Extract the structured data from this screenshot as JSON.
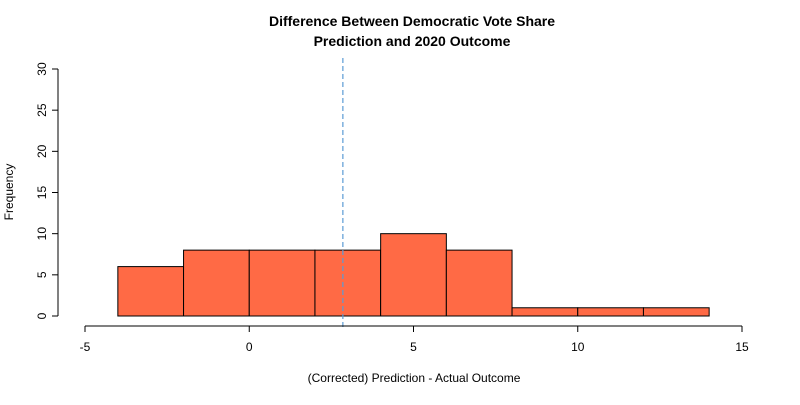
{
  "chart_data": {
    "type": "bar",
    "title_lines": [
      "Difference Between Democratic Vote Share",
      "Prediction and 2020 Outcome"
    ],
    "xlabel": "(Corrected) Prediction - Actual Outcome",
    "ylabel": "Frequency",
    "xlim": [
      -5,
      15
    ],
    "ylim": [
      0,
      30
    ],
    "x_ticks": [
      -5,
      0,
      5,
      10,
      15
    ],
    "y_ticks": [
      0,
      5,
      10,
      15,
      20,
      25,
      30
    ],
    "bins": [
      {
        "x0": -4,
        "x1": -2,
        "count": 6
      },
      {
        "x0": -2,
        "x1": 0,
        "count": 8
      },
      {
        "x0": 0,
        "x1": 2,
        "count": 8
      },
      {
        "x0": 2,
        "x1": 4,
        "count": 8
      },
      {
        "x0": 4,
        "x1": 6,
        "count": 10
      },
      {
        "x0": 6,
        "x1": 8,
        "count": 8
      },
      {
        "x0": 8,
        "x1": 10,
        "count": 1
      },
      {
        "x0": 10,
        "x1": 12,
        "count": 1
      },
      {
        "x0": 12,
        "x1": 14,
        "count": 1
      }
    ],
    "reference_line": {
      "x": 2.85,
      "style": "dashed",
      "color": "#5b9bd5"
    },
    "bar_color": "#ff6a45",
    "bar_stroke": "#000000",
    "grid": false,
    "legend": "none"
  }
}
